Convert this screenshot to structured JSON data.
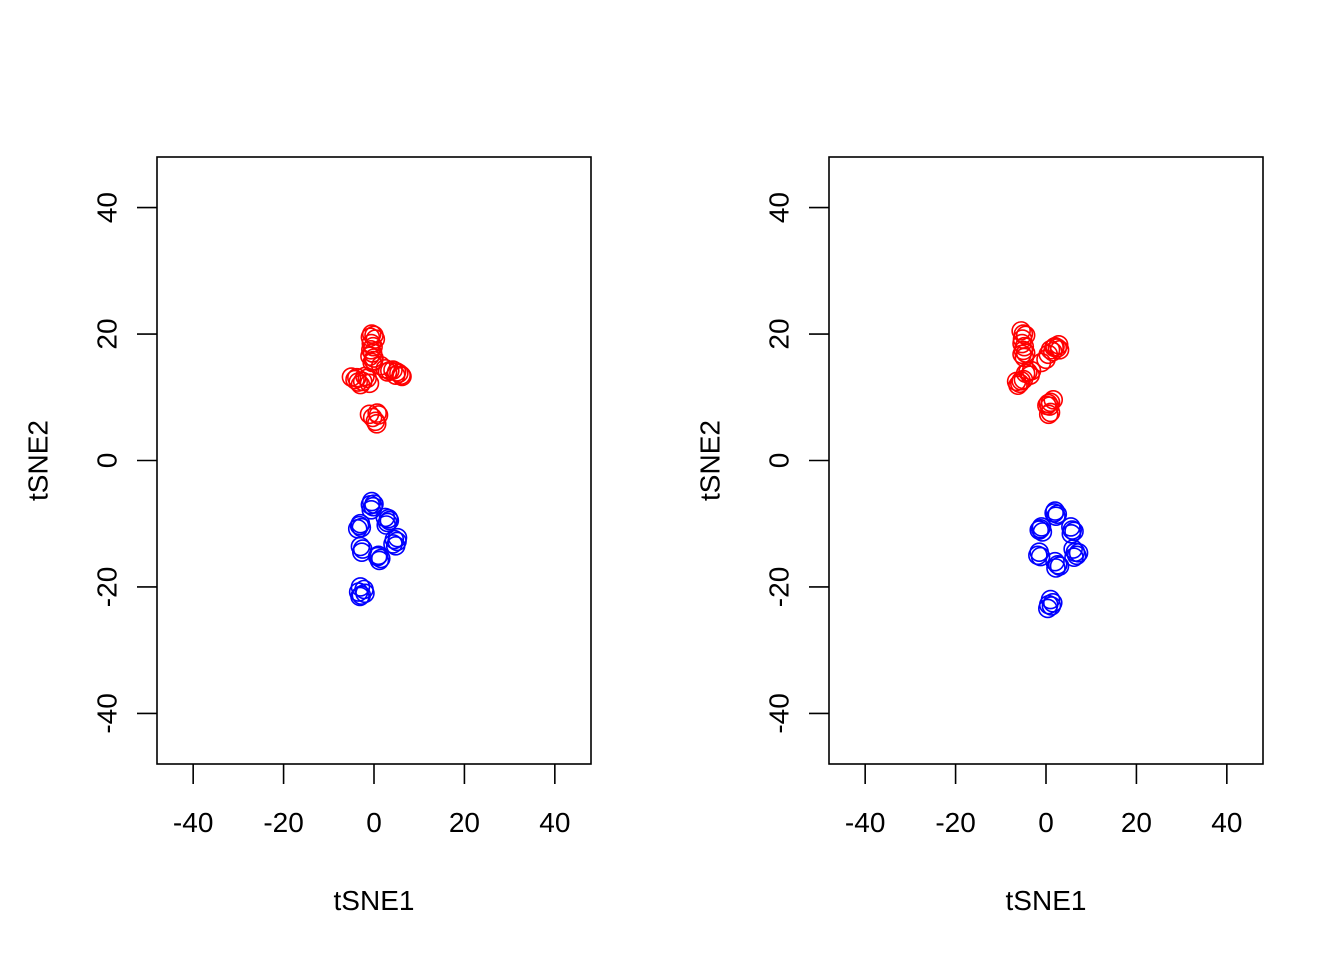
{
  "colors": {
    "red": "#ff0000",
    "blue": "#0000ff"
  },
  "chart_data": [
    {
      "type": "scatter",
      "xlabel": "tSNE1",
      "ylabel": "tSNE2",
      "xlim": [
        -48,
        48
      ],
      "ylim": [
        -48,
        48
      ],
      "xticks": [
        "-40",
        "-20",
        "0",
        "20",
        "40"
      ],
      "yticks": [
        "-40",
        "-20",
        "0",
        "20",
        "40"
      ],
      "xtick_values": [
        -40,
        -20,
        0,
        20,
        40
      ],
      "ytick_values": [
        -40,
        -20,
        0,
        20,
        40
      ],
      "marker": "open-circle",
      "series": [
        {
          "color": "#ff0000",
          "points": [
            [
              -0.5,
              20
            ],
            [
              0,
              19.8
            ],
            [
              -0.8,
              19.5
            ],
            [
              0.3,
              19.2
            ],
            [
              -0.6,
              18.5
            ],
            [
              -0.2,
              18
            ],
            [
              -0.7,
              17.5
            ],
            [
              -0.3,
              17
            ],
            [
              -0.9,
              16.5
            ],
            [
              0,
              16.2
            ],
            [
              -0.4,
              15.5
            ],
            [
              -0.1,
              15.8
            ],
            [
              1.5,
              15
            ],
            [
              2.5,
              14.5
            ],
            [
              3.5,
              14.2
            ],
            [
              4.2,
              14.3
            ],
            [
              5,
              14
            ],
            [
              5.5,
              13.8
            ],
            [
              6,
              13.5
            ],
            [
              6.2,
              13.3
            ],
            [
              3,
              14
            ],
            [
              4.8,
              13.5
            ],
            [
              -5,
              13.2
            ],
            [
              -4.2,
              12.8
            ],
            [
              -3.5,
              12.4
            ],
            [
              -3,
              12
            ],
            [
              -2.5,
              12.5
            ],
            [
              -1.5,
              13
            ],
            [
              -2,
              13.3
            ],
            [
              -3.8,
              13.1
            ],
            [
              -1,
              12.2
            ],
            [
              0.7,
              7.5
            ],
            [
              1,
              7.2
            ],
            [
              -1,
              7.3
            ],
            [
              0.3,
              6.2
            ],
            [
              0.6,
              5.8
            ],
            [
              -0.3,
              6.8
            ]
          ]
        },
        {
          "color": "#0000ff",
          "points": [
            [
              -0.5,
              -6.5
            ],
            [
              -0.8,
              -7
            ],
            [
              -0.2,
              -7.3
            ],
            [
              -0.6,
              -7.8
            ],
            [
              0,
              -6.9
            ],
            [
              2.5,
              -9
            ],
            [
              3.2,
              -9.2
            ],
            [
              3,
              -9.8
            ],
            [
              2.7,
              -10.2
            ],
            [
              3.4,
              -9.5
            ],
            [
              -3,
              -10
            ],
            [
              -3.2,
              -10.3
            ],
            [
              -3.6,
              -10.8
            ],
            [
              -2.8,
              -10.6
            ],
            [
              4.5,
              -12.5
            ],
            [
              5.1,
              -12.8
            ],
            [
              4.8,
              -13.5
            ],
            [
              5.2,
              -12.2
            ],
            [
              4.2,
              -13.2
            ],
            [
              -2.5,
              -14
            ],
            [
              -3,
              -13.6
            ],
            [
              -2.7,
              -14.5
            ],
            [
              1,
              -15
            ],
            [
              1.5,
              -15.5
            ],
            [
              1.2,
              -15.8
            ],
            [
              0.8,
              -15.2
            ],
            [
              -3,
              -20
            ],
            [
              -2.2,
              -20.4
            ],
            [
              -3.4,
              -20.8
            ],
            [
              -2.8,
              -21.3
            ],
            [
              -2,
              -21
            ],
            [
              -3.1,
              -21.5
            ]
          ]
        }
      ]
    },
    {
      "type": "scatter",
      "xlabel": "tSNE1",
      "ylabel": "tSNE2",
      "xlim": [
        -48,
        48
      ],
      "ylim": [
        -48,
        48
      ],
      "xticks": [
        "-40",
        "-20",
        "0",
        "20",
        "40"
      ],
      "yticks": [
        "-40",
        "-20",
        "0",
        "20",
        "40"
      ],
      "xtick_values": [
        -40,
        -20,
        0,
        20,
        40
      ],
      "ytick_values": [
        -40,
        -20,
        0,
        20,
        40
      ],
      "marker": "open-circle",
      "series": [
        {
          "color": "#ff0000",
          "points": [
            [
              -5.5,
              20.5
            ],
            [
              -5,
              20
            ],
            [
              -4.5,
              19.8
            ],
            [
              -5.2,
              19.2
            ],
            [
              -5.3,
              18.5
            ],
            [
              -4.8,
              18
            ],
            [
              -5,
              17.4
            ],
            [
              -4.5,
              17
            ],
            [
              -5.3,
              16.8
            ],
            [
              -4.8,
              16.3
            ],
            [
              -4,
              14
            ],
            [
              -3.5,
              13.5
            ],
            [
              -4.5,
              13.8
            ],
            [
              -3.2,
              14.2
            ],
            [
              -6.5,
              12.5
            ],
            [
              -5.8,
              12.2
            ],
            [
              -6.2,
              11.9
            ],
            [
              -5.5,
              12.6
            ],
            [
              -5,
              12.8
            ],
            [
              0,
              16
            ],
            [
              -1,
              15.5
            ],
            [
              0.5,
              16.8
            ],
            [
              1,
              17.5
            ],
            [
              1.5,
              17.2
            ],
            [
              2,
              18
            ],
            [
              2.5,
              17.8
            ],
            [
              2.8,
              18.3
            ],
            [
              3,
              17.5
            ],
            [
              1.8,
              17.9
            ],
            [
              0.5,
              9
            ],
            [
              1,
              9.2
            ],
            [
              1.6,
              9.6
            ],
            [
              0.8,
              8.6
            ],
            [
              1,
              7.6
            ],
            [
              0.6,
              7.3
            ],
            [
              0.2,
              8.7
            ]
          ]
        },
        {
          "color": "#0000ff",
          "points": [
            [
              2,
              -8
            ],
            [
              2.5,
              -8.5
            ],
            [
              2.2,
              -8.8
            ],
            [
              1.8,
              -8.3
            ],
            [
              -1,
              -10.5
            ],
            [
              -1.5,
              -11
            ],
            [
              -0.8,
              -11.3
            ],
            [
              -1.2,
              -10.8
            ],
            [
              5.5,
              -10.5
            ],
            [
              5.8,
              -11
            ],
            [
              6.2,
              -11.2
            ],
            [
              5.6,
              -11.6
            ],
            [
              -1.5,
              -14.5
            ],
            [
              -1.8,
              -15
            ],
            [
              -1.2,
              -15.2
            ],
            [
              6,
              -14
            ],
            [
              6.5,
              -14.5
            ],
            [
              6.8,
              -15
            ],
            [
              7.2,
              -14.6
            ],
            [
              6.2,
              -15.3
            ],
            [
              2,
              -16
            ],
            [
              2.6,
              -16.5
            ],
            [
              2.2,
              -17
            ],
            [
              3,
              -16.7
            ],
            [
              1,
              -22
            ],
            [
              1.5,
              -22.5
            ],
            [
              1.2,
              -23
            ],
            [
              0.4,
              -23.4
            ],
            [
              0.6,
              -22.8
            ]
          ]
        }
      ]
    }
  ]
}
